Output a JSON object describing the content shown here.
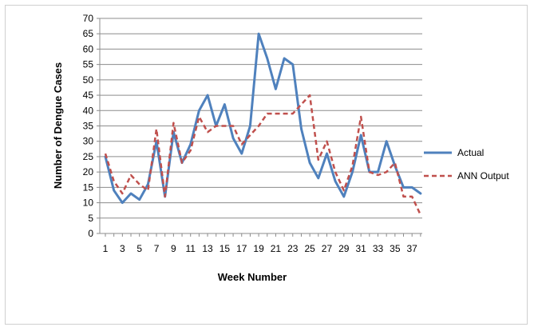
{
  "chart_data": {
    "type": "line",
    "title": "",
    "xlabel": "Week Number",
    "ylabel": "Number of Dengue Cases",
    "ylim": [
      0,
      70
    ],
    "ytick_step": 5,
    "xlim": [
      1,
      38
    ],
    "x": [
      1,
      2,
      3,
      4,
      5,
      6,
      7,
      8,
      9,
      10,
      11,
      12,
      13,
      14,
      15,
      16,
      17,
      18,
      19,
      20,
      21,
      22,
      23,
      24,
      25,
      26,
      27,
      28,
      29,
      30,
      31,
      32,
      33,
      34,
      35,
      36,
      37,
      38
    ],
    "xtick_labels": [
      "1",
      "3",
      "5",
      "7",
      "9",
      "11",
      "13",
      "15",
      "17",
      "19",
      "21",
      "23",
      "25",
      "27",
      "29",
      "31",
      "33",
      "35",
      "37"
    ],
    "grid": "horizontal",
    "legend_position": "right",
    "series": [
      {
        "name": "Actual",
        "color": "#4f81bd",
        "style": "solid",
        "values": [
          25,
          14,
          10,
          13,
          11,
          16,
          30,
          12,
          33,
          23,
          29,
          40,
          45,
          35,
          42,
          31,
          26,
          35,
          65,
          57,
          47,
          57,
          55,
          34,
          23,
          18,
          26,
          17,
          12,
          20,
          32,
          20,
          20,
          30,
          22,
          15,
          15,
          13
        ]
      },
      {
        "name": "ANN Output",
        "color": "#c0504d",
        "style": "dashed",
        "values": [
          26,
          17,
          13,
          19,
          16,
          14,
          34,
          12,
          36,
          23,
          27,
          38,
          33,
          35,
          35,
          35,
          29,
          32,
          35,
          39,
          39,
          39,
          39,
          42,
          45,
          24,
          30,
          20,
          14,
          22,
          38,
          20,
          19,
          20,
          23,
          12,
          12,
          6
        ]
      }
    ]
  }
}
